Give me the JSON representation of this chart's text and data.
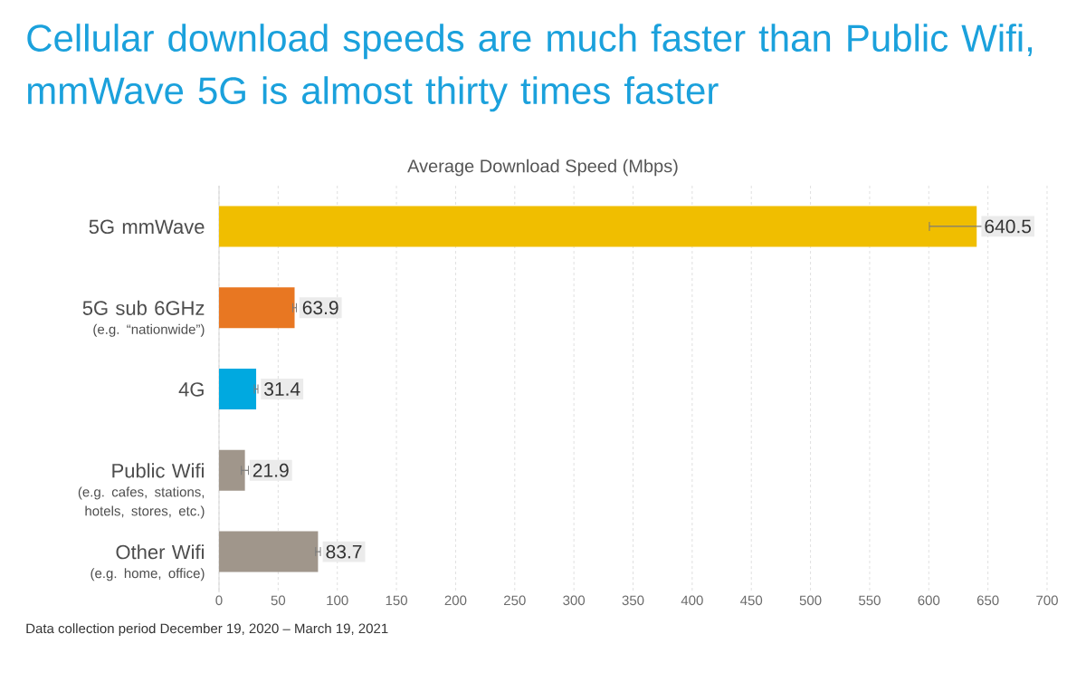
{
  "chart_data": {
    "type": "bar",
    "orientation": "horizontal",
    "title": "Cellular download speeds are much faster than Public Wifi, mmWave 5G is almost thirty times faster",
    "subtitle": "Average Download Speed (Mbps)",
    "categories": [
      "5G mmWave",
      "5G sub 6GHz\n(e.g. “nationwide”)",
      "4G",
      "Public Wifi\n(e.g. cafes, stations,\nhotels, stores, etc.)",
      "Other Wifi\n(e.g. home, office)"
    ],
    "values": [
      640.5,
      63.9,
      31.4,
      21.9,
      83.7
    ],
    "errors": [
      40,
      1.5,
      1.5,
      3,
      2
    ],
    "colors": [
      "#f0be00",
      "#e87722",
      "#00a9e0",
      "#a0968b",
      "#a0968b"
    ],
    "xlim": [
      0,
      700
    ],
    "xticks": [
      0,
      50,
      100,
      150,
      200,
      250,
      300,
      350,
      400,
      450,
      500,
      550,
      600,
      650,
      700
    ],
    "grid": "x",
    "data_labels": true,
    "annotations": [
      "Data collection period December 19, 2020 – March 19, 2021"
    ]
  }
}
